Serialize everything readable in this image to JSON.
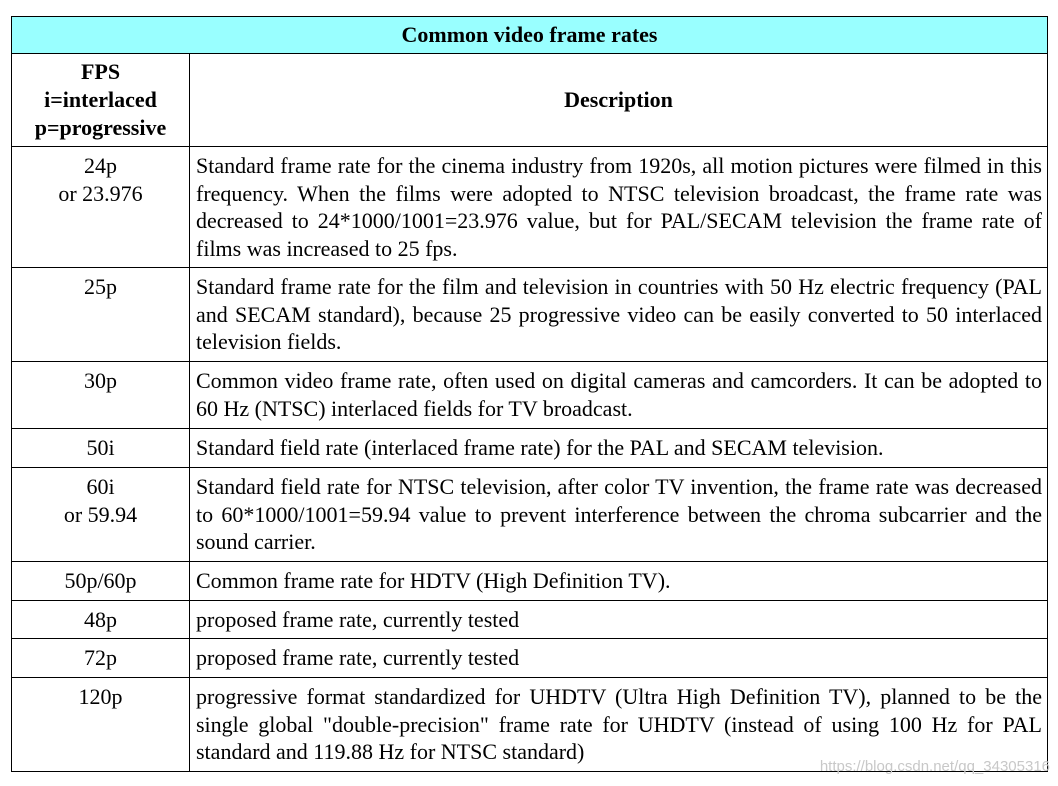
{
  "table": {
    "title": "Common video frame rates",
    "header": {
      "fps": "FPS\ni=interlaced\np=progressive",
      "description": "Description"
    },
    "rows": [
      {
        "fps": "24p\nor 23.976",
        "description": "Standard frame rate for the cinema industry from 1920s, all motion pictures were filmed in this frequency. When the films were adopted to NTSC television broadcast, the frame rate was decreased to 24*1000/1001=23.976 value, but for PAL/SECAM television the frame rate of films was increased to 25 fps."
      },
      {
        "fps": "25p",
        "description": "Standard frame rate for the film and television in countries with 50 Hz electric frequency (PAL and SECAM standard), because 25 progressive video can be easily converted to 50 interlaced television fields."
      },
      {
        "fps": "30p",
        "description": "Common video frame rate, often used on digital cameras and camcorders. It can be adopted to 60 Hz (NTSC) interlaced fields for TV broadcast."
      },
      {
        "fps": "50i",
        "description": "Standard field rate (interlaced frame rate) for the PAL and SECAM television."
      },
      {
        "fps": "60i\nor 59.94",
        "description": "Standard field rate for NTSC television, after color TV invention, the frame rate was decreased to 60*1000/1001=59.94 value to prevent interference between the chroma subcarrier and the sound carrier."
      },
      {
        "fps": "50p/60p",
        "description": "Common frame rate for HDTV (High Definition TV)."
      },
      {
        "fps": "48p",
        "description": "proposed frame rate, currently tested"
      },
      {
        "fps": "72p",
        "description": "proposed frame rate, currently tested"
      },
      {
        "fps": "120p",
        "description": "progressive format standardized for UHDTV (Ultra High Definition TV), planned to be the single global \"double-precision\" frame rate for UHDTV (instead of using 100 Hz for PAL standard and 119.88 Hz for NTSC standard)"
      }
    ]
  },
  "watermark": "https://blog.csdn.net/qq_34305316"
}
